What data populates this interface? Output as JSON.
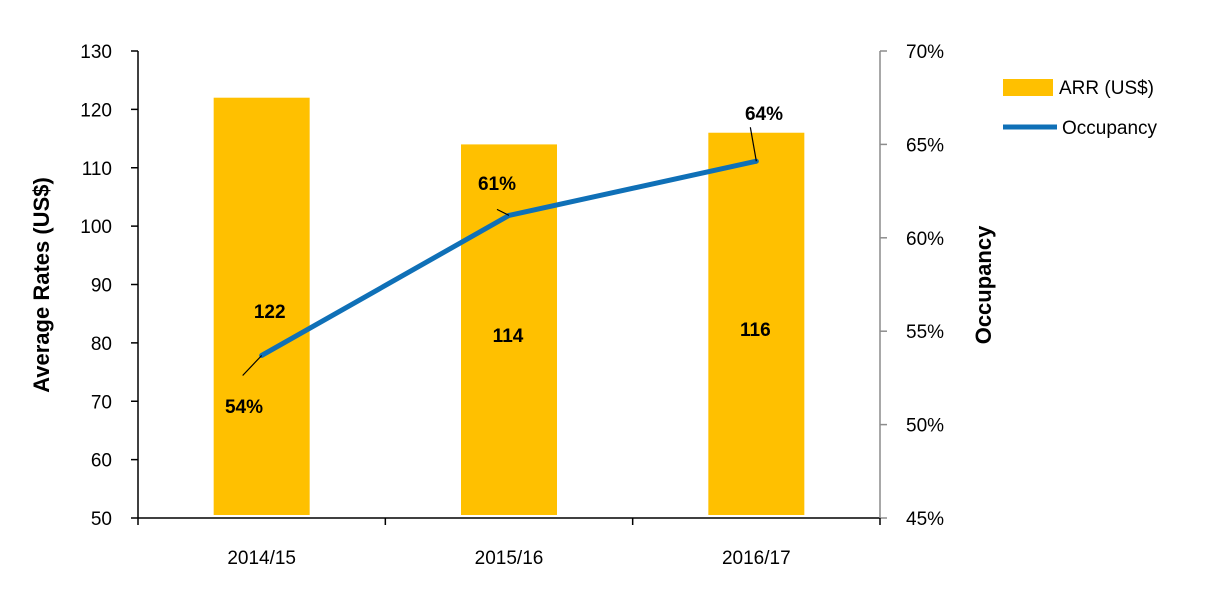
{
  "chart_data": {
    "type": "bar",
    "categories": [
      "2014/15",
      "2015/16",
      "2016/17"
    ],
    "series": [
      {
        "name": "ARR (US$)",
        "kind": "bar",
        "axis": "left",
        "color": "#FFC000",
        "values": [
          122,
          114,
          116
        ],
        "labels": [
          "122",
          "114",
          "116"
        ]
      },
      {
        "name": "Occupancy",
        "kind": "line",
        "axis": "right",
        "color": "#0F70B7",
        "values": [
          0.537,
          0.612,
          0.641
        ],
        "labels": [
          "54%",
          "61%",
          "64%"
        ]
      }
    ],
    "left_axis": {
      "title": "Average Rates (US$)",
      "min": 50,
      "max": 130,
      "step": 10,
      "tick_labels": [
        "50",
        "60",
        "70",
        "80",
        "90",
        "100",
        "110",
        "120",
        "130"
      ]
    },
    "right_axis": {
      "title": "Occupancy",
      "min": 0.45,
      "max": 0.7,
      "step": 0.05,
      "tick_labels": [
        "45%",
        "50%",
        "55%",
        "60%",
        "65%",
        "70%"
      ]
    },
    "legend": {
      "position": "top-right"
    },
    "grid": false
  }
}
